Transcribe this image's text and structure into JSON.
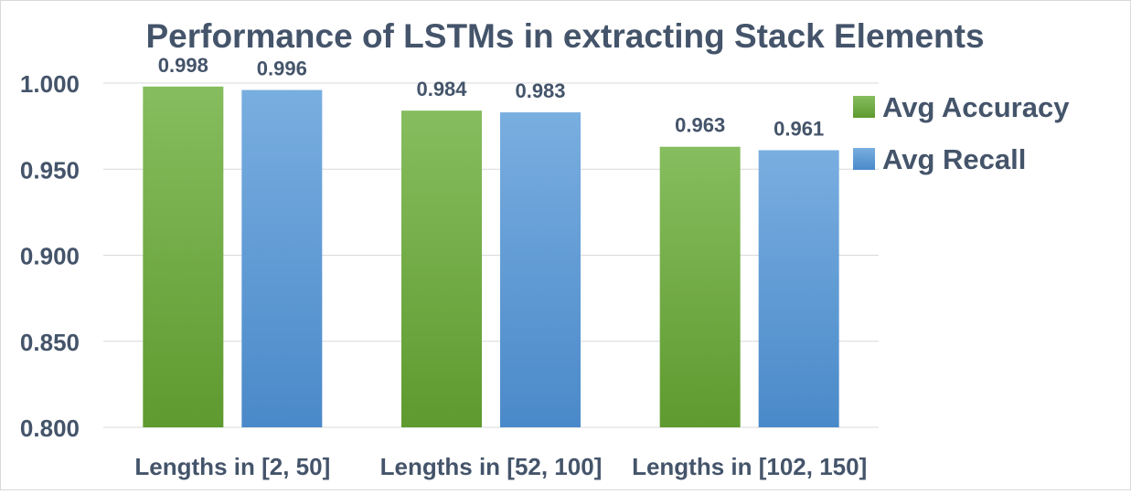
{
  "chart_data": {
    "type": "bar",
    "title": "Performance of LSTMs in extracting Stack Elements",
    "xlabel": "",
    "ylabel": "",
    "categories": [
      "Lengths in [2, 50]",
      "Lengths in [52, 100]",
      "Lengths in [102, 150]"
    ],
    "series": [
      {
        "name": "Avg Accuracy",
        "values": [
          0.998,
          0.984,
          0.963
        ],
        "labels": [
          "0.998",
          "0.984",
          "0.963"
        ]
      },
      {
        "name": "Avg Recall",
        "values": [
          0.996,
          0.983,
          0.961
        ],
        "labels": [
          "0.996",
          "0.983",
          "0.961"
        ]
      }
    ],
    "ylim": [
      0.8,
      1.0
    ],
    "yticks": [
      0.8,
      0.85,
      0.9,
      0.95,
      1.0
    ],
    "ytick_labels": [
      "0.800",
      "0.850",
      "0.900",
      "0.950",
      "1.000"
    ],
    "grid": true,
    "legend_position": "right",
    "colors": {
      "series": [
        "#6faa3f",
        "#5b9bd5"
      ],
      "series_light": [
        "#86bd5e",
        "#79aee0"
      ],
      "series_dark": [
        "#5e9a2f",
        "#4a89c9"
      ],
      "text": "#44546a",
      "grid": "#d9d9d9"
    }
  }
}
